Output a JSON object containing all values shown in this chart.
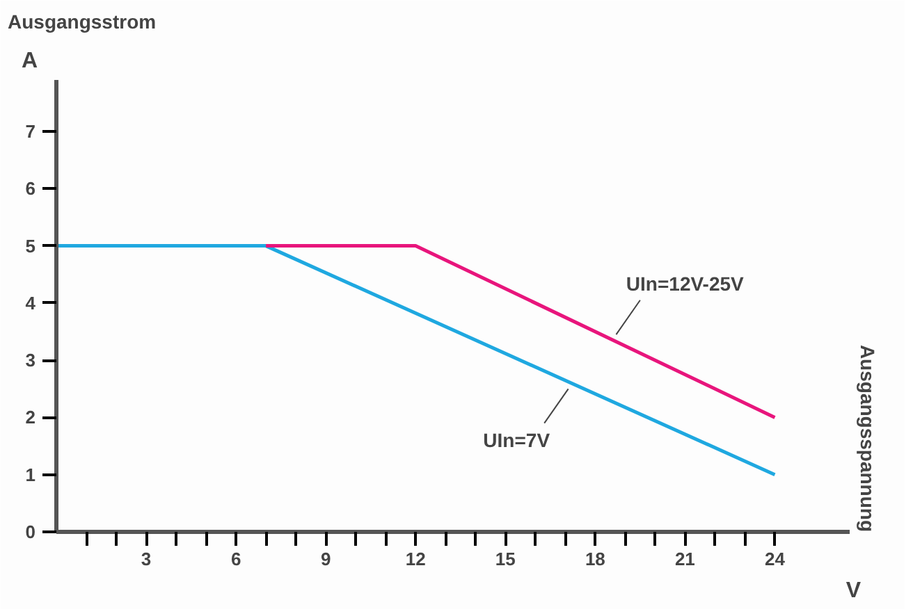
{
  "chart_data": {
    "type": "line",
    "ylabel": "Ausgangsstrom",
    "annotations": [
      "A",
      "V",
      "Ausgangsspannung"
    ],
    "series": [
      {
        "name": "UIn=7V",
        "color": "#1fa8e0",
        "x": [
          0,
          7,
          24
        ],
        "values": [
          5,
          5,
          1
        ]
      },
      {
        "name": "UIn=12V-25V",
        "color": "#e8157c",
        "x": [
          7,
          12,
          24
        ],
        "values": [
          5,
          5,
          2
        ]
      }
    ],
    "xlim": [
      0,
      26.5
    ],
    "ylim": [
      0,
      7.9
    ],
    "xticks": [
      {
        "value": 1,
        "label": null
      },
      {
        "value": 2,
        "label": null
      },
      3,
      {
        "value": 4,
        "label": null
      },
      {
        "value": 5,
        "label": null
      },
      6,
      {
        "value": 7,
        "label": null
      },
      {
        "value": 8,
        "label": null
      },
      9,
      {
        "value": 10,
        "label": null
      },
      {
        "value": 11,
        "label": null
      },
      12,
      {
        "value": 13,
        "label": null
      },
      {
        "value": 14,
        "label": null
      },
      15,
      {
        "value": 16,
        "label": null
      },
      {
        "value": 17,
        "label": null
      },
      18,
      {
        "value": 19,
        "label": null
      },
      {
        "value": 20,
        "label": null
      },
      21,
      {
        "value": 22,
        "label": null
      },
      {
        "value": 23,
        "label": null
      },
      24
    ],
    "yticks": [
      0,
      1,
      2,
      3,
      4,
      5,
      6,
      7
    ],
    "grid": false,
    "marker": "none",
    "line_style": "solid"
  }
}
